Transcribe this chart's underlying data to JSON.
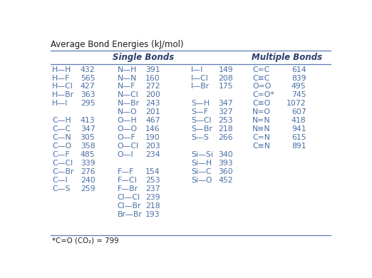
{
  "title": "Average Bond Energies (kJ/mol)",
  "footnote": "*C=O (CO₂) = 799",
  "single_bonds_header": "Single Bonds",
  "multiple_bonds_header": "Multiple Bonds",
  "text_color": "#4a6fa5",
  "header_color": "#2c3e6b",
  "title_color": "#1a1a1a",
  "line_color": "#5a7ab5",
  "bg_color": "#ffffff",
  "font_size": 7.8,
  "header_font_size": 8.5,
  "title_font_size": 8.5,
  "col1_rows": [
    [
      "H—H",
      "432"
    ],
    [
      "H—F",
      "565"
    ],
    [
      "H—Cl",
      "427"
    ],
    [
      "H—Br",
      "363"
    ],
    [
      "H—I",
      "295"
    ],
    [
      "",
      ""
    ],
    [
      "C—H",
      "413"
    ],
    [
      "C—C",
      "347"
    ],
    [
      "C—N",
      "305"
    ],
    [
      "C—O",
      "358"
    ],
    [
      "C—F",
      "485"
    ],
    [
      "C—Cl",
      "339"
    ],
    [
      "C—Br",
      "276"
    ],
    [
      "C—I",
      "240"
    ],
    [
      "C—S",
      "259"
    ]
  ],
  "col2_rows": [
    [
      "N—H",
      "391"
    ],
    [
      "N—N",
      "160"
    ],
    [
      "N—F",
      "272"
    ],
    [
      "N—Cl",
      "200"
    ],
    [
      "N—Br",
      "243"
    ],
    [
      "N—O",
      "201"
    ],
    [
      "O—H",
      "467"
    ],
    [
      "O—O",
      "146"
    ],
    [
      "O—F",
      "190"
    ],
    [
      "O—Cl",
      "203"
    ],
    [
      "O—I",
      "234"
    ],
    [
      "",
      ""
    ],
    [
      "F—F",
      "154"
    ],
    [
      "F—Cl",
      "253"
    ],
    [
      "F—Br",
      "237"
    ],
    [
      "Cl—Cl",
      "239"
    ],
    [
      "Cl—Br",
      "218"
    ],
    [
      "Br—Br",
      "193"
    ]
  ],
  "col3_rows": [
    [
      "I—I",
      "149"
    ],
    [
      "I—Cl",
      "208"
    ],
    [
      "I—Br",
      "175"
    ],
    [
      "",
      ""
    ],
    [
      "S—H",
      "347"
    ],
    [
      "S—F",
      "327"
    ],
    [
      "S—Cl",
      "253"
    ],
    [
      "S—Br",
      "218"
    ],
    [
      "S—S",
      "266"
    ],
    [
      "",
      ""
    ],
    [
      "Si—Si",
      "340"
    ],
    [
      "Si—H",
      "393"
    ],
    [
      "Si—C",
      "360"
    ],
    [
      "Si—O",
      "452"
    ]
  ],
  "col4_rows": [
    [
      "C=C",
      "614"
    ],
    [
      "C≡C",
      "839"
    ],
    [
      "O=O",
      "495"
    ],
    [
      "C=O*",
      "745"
    ],
    [
      "C≡O",
      "1072"
    ],
    [
      "N=O",
      "607"
    ],
    [
      "N=N",
      "418"
    ],
    [
      "N≡N",
      "941"
    ],
    [
      "C=N",
      "615"
    ],
    [
      "C≡N",
      "891"
    ]
  ]
}
